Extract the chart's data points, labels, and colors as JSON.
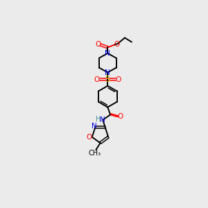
{
  "bg_color": "#ebebeb",
  "atom_colors": {
    "C": "#000000",
    "N": "#0000ee",
    "O": "#ff0000",
    "S": "#cccc00",
    "H": "#4a9090"
  },
  "figsize": [
    3.0,
    3.0
  ],
  "dpi": 100
}
